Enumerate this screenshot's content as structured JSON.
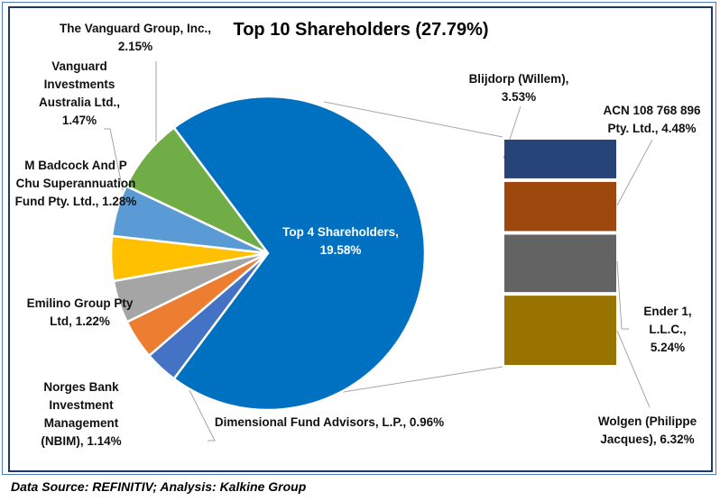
{
  "chart_data": {
    "type": "pie-of-bar",
    "title": "Top 10 Shareholders (27.79%)",
    "pie": [
      {
        "name": "Top 4 Shareholders",
        "value": 19.58,
        "label": "Top 4 Shareholders, 19.58%",
        "color": "#0070c0"
      },
      {
        "name": "The Vanguard Group, Inc.",
        "value": 2.15,
        "label": "The Vanguard Group, Inc., 2.15%",
        "color": "#70ad47"
      },
      {
        "name": "Vanguard Investments Australia Ltd.",
        "value": 1.47,
        "label": "Vanguard Investments Australia Ltd., 1.47%",
        "color": "#5b9bd5"
      },
      {
        "name": "M Badcock And P Chu Superannuation Fund Pty. Ltd.",
        "value": 1.28,
        "label": "M Badcock And P Chu Superannuation Fund Pty. Ltd., 1.28%",
        "color": "#ffc000"
      },
      {
        "name": "Emilino Group Pty Ltd",
        "value": 1.22,
        "label": "Emilino Group Pty Ltd, 1.22%",
        "color": "#a5a5a5"
      },
      {
        "name": "Norges Bank Investment Management (NBIM)",
        "value": 1.14,
        "label": "Norges Bank Investment Management (NBIM), 1.14%",
        "color": "#ed7d31"
      },
      {
        "name": "Dimensional Fund Advisors, L.P.",
        "value": 0.96,
        "label": "Dimensional Fund Advisors, L.P., 0.96%",
        "color": "#4472c4"
      }
    ],
    "bar": [
      {
        "name": "Blijdorp (Willem)",
        "value": 3.53,
        "label": "Blijdorp (Willem), 3.53%",
        "color": "#264478"
      },
      {
        "name": "ACN 108 768 896 Pty. Ltd.",
        "value": 4.48,
        "label": "ACN 108 768 896 Pty. Ltd., 4.48%",
        "color": "#9e480e"
      },
      {
        "name": "Ender 1, L.L.C.",
        "value": 5.24,
        "label": "Ender 1, L.L.C., 5.24%",
        "color": "#636363"
      },
      {
        "name": "Wolgen (Philippe Jacques)",
        "value": 6.32,
        "label": "Wolgen (Philippe Jacques), 6.32%",
        "color": "#997300"
      }
    ]
  },
  "source": "Data Source: REFINITIV; Analysis: Kalkine Group"
}
